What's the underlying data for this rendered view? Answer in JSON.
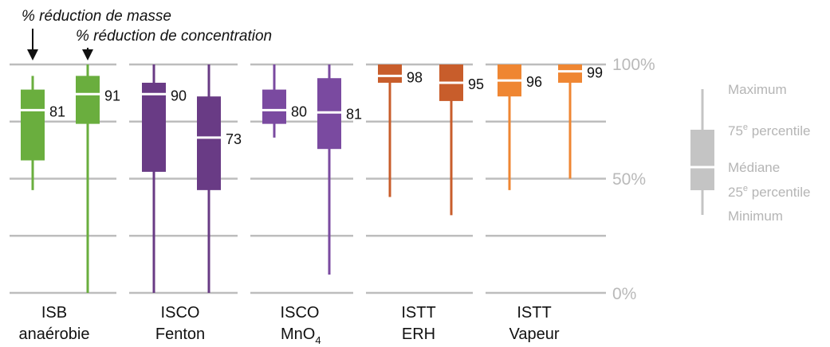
{
  "chart_data": {
    "type": "boxplot",
    "annotations": {
      "mass": "% réduction de masse",
      "concentration": "% réduction de concentration"
    },
    "y_ticks": [
      {
        "value": 100,
        "label": "100%"
      },
      {
        "value": 50,
        "label": "50%"
      },
      {
        "value": 0,
        "label": "0%"
      }
    ],
    "y_range": [
      0,
      100
    ],
    "grid": true,
    "groups": [
      {
        "line1": "ISB",
        "line2": "anaérobie",
        "sub": "",
        "color": "#6aae3e",
        "boxes": [
          {
            "min": 45,
            "q1": 58,
            "median": 80,
            "q3": 89,
            "max": 95,
            "label": "81"
          },
          {
            "min": 0,
            "q1": 74,
            "median": 87,
            "q3": 95,
            "max": 100,
            "label": "91"
          }
        ]
      },
      {
        "line1": "ISCO",
        "line2": "Fenton",
        "sub": "",
        "color": "#693b85",
        "boxes": [
          {
            "min": 0,
            "q1": 53,
            "median": 87,
            "q3": 92,
            "max": 100,
            "label": "90"
          },
          {
            "min": 0,
            "q1": 45,
            "median": 68,
            "q3": 86,
            "max": 100,
            "label": "73"
          }
        ]
      },
      {
        "line1": "ISCO",
        "line2": "MnO",
        "sub": "4",
        "color": "#7a4aa0",
        "boxes": [
          {
            "min": 68,
            "q1": 74,
            "median": 80,
            "q3": 89,
            "max": 100,
            "label": "80"
          },
          {
            "min": 8,
            "q1": 63,
            "median": 79,
            "q3": 94,
            "max": 100,
            "label": "81"
          }
        ]
      },
      {
        "line1": "ISTT",
        "line2": "ERH",
        "sub": "",
        "color": "#c85d2b",
        "boxes": [
          {
            "min": 42,
            "q1": 92,
            "median": 95,
            "q3": 100,
            "max": 100,
            "label": "98"
          },
          {
            "min": 34,
            "q1": 84,
            "median": 92,
            "q3": 100,
            "max": 100,
            "label": "95"
          }
        ]
      },
      {
        "line1": "ISTT",
        "line2": "Vapeur",
        "sub": "",
        "color": "#ef8632",
        "boxes": [
          {
            "min": 45,
            "q1": 86,
            "median": 93,
            "q3": 100,
            "max": 100,
            "label": "96"
          },
          {
            "min": 50,
            "q1": 92,
            "median": 97,
            "q3": 100,
            "max": 100,
            "label": "99"
          }
        ]
      }
    ],
    "legend": {
      "color": "#c4c4c4",
      "max": "Maximum",
      "q3": "75",
      "q3_sup": "e",
      "q3_rest": " percentile",
      "median": "Médiane",
      "q1": "25",
      "q1_sup": "e",
      "q1_rest": " percentile",
      "min": "Minimum"
    }
  }
}
